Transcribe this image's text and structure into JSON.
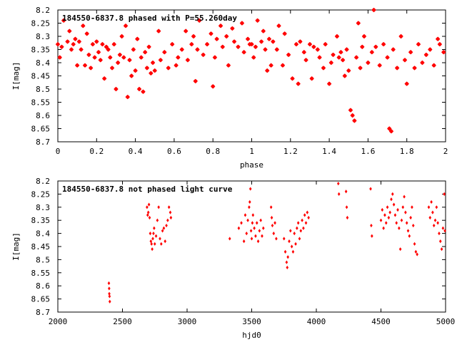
{
  "chart_data": [
    {
      "type": "scatter",
      "title": "184550-6837.8 phased with P=55.260day",
      "xlabel": "phase",
      "ylabel": "I[mag]",
      "xlim": [
        0,
        2
      ],
      "ylim": [
        8.7,
        8.2
      ],
      "y_inverted": true,
      "grid": false,
      "marker": "filled-star",
      "color": "#ff0000",
      "x_ticks": [
        "0",
        "0.2",
        "0.4",
        "0.6",
        "0.8",
        "1",
        "1.2",
        "1.4",
        "1.6",
        "1.8",
        "2"
      ],
      "y_ticks": [
        "8.2",
        "8.25",
        "8.3",
        "8.35",
        "8.4",
        "8.45",
        "8.5",
        "8.55",
        "8.6",
        "8.65",
        "8.7"
      ],
      "points": [
        [
          0.0,
          8.33
        ],
        [
          0.01,
          8.38
        ],
        [
          0.02,
          8.34
        ],
        [
          0.03,
          8.24
        ],
        [
          0.05,
          8.32
        ],
        [
          0.06,
          8.28
        ],
        [
          0.07,
          8.35
        ],
        [
          0.08,
          8.33
        ],
        [
          0.09,
          8.31
        ],
        [
          0.1,
          8.41
        ],
        [
          0.11,
          8.32
        ],
        [
          0.12,
          8.35
        ],
        [
          0.13,
          8.26
        ],
        [
          0.14,
          8.41
        ],
        [
          0.15,
          8.29
        ],
        [
          0.16,
          8.37
        ],
        [
          0.17,
          8.42
        ],
        [
          0.18,
          8.33
        ],
        [
          0.19,
          8.38
        ],
        [
          0.2,
          8.32
        ],
        [
          0.21,
          8.36
        ],
        [
          0.22,
          8.39
        ],
        [
          0.23,
          8.33
        ],
        [
          0.24,
          8.46
        ],
        [
          0.25,
          8.34
        ],
        [
          0.26,
          8.35
        ],
        [
          0.27,
          8.38
        ],
        [
          0.28,
          8.42
        ],
        [
          0.29,
          8.33
        ],
        [
          0.3,
          8.5
        ],
        [
          0.31,
          8.4
        ],
        [
          0.32,
          8.37
        ],
        [
          0.33,
          8.3
        ],
        [
          0.34,
          8.38
        ],
        [
          0.35,
          8.26
        ],
        [
          0.36,
          8.53
        ],
        [
          0.37,
          8.39
        ],
        [
          0.38,
          8.45
        ],
        [
          0.39,
          8.35
        ],
        [
          0.4,
          8.43
        ],
        [
          0.41,
          8.31
        ],
        [
          0.42,
          8.5
        ],
        [
          0.43,
          8.38
        ],
        [
          0.44,
          8.51
        ],
        [
          0.45,
          8.36
        ],
        [
          0.46,
          8.42
        ],
        [
          0.47,
          8.34
        ],
        [
          0.48,
          8.44
        ],
        [
          0.49,
          8.4
        ],
        [
          0.5,
          8.43
        ],
        [
          0.52,
          8.28
        ],
        [
          0.53,
          8.39
        ],
        [
          0.55,
          8.36
        ],
        [
          0.57,
          8.42
        ],
        [
          0.59,
          8.33
        ],
        [
          0.61,
          8.41
        ],
        [
          0.62,
          8.38
        ],
        [
          0.64,
          8.35
        ],
        [
          0.66,
          8.28
        ],
        [
          0.67,
          8.39
        ],
        [
          0.69,
          8.33
        ],
        [
          0.7,
          8.3
        ],
        [
          0.71,
          8.47
        ],
        [
          0.72,
          8.35
        ],
        [
          0.73,
          8.24
        ],
        [
          0.75,
          8.37
        ],
        [
          0.77,
          8.33
        ],
        [
          0.79,
          8.29
        ],
        [
          0.8,
          8.49
        ],
        [
          0.81,
          8.38
        ],
        [
          0.82,
          8.31
        ],
        [
          0.84,
          8.26
        ],
        [
          0.85,
          8.34
        ],
        [
          0.87,
          8.3
        ],
        [
          0.88,
          8.41
        ],
        [
          0.9,
          8.27
        ],
        [
          0.91,
          8.32
        ],
        [
          0.93,
          8.34
        ],
        [
          0.95,
          8.25
        ],
        [
          0.96,
          8.36
        ],
        [
          0.98,
          8.31
        ],
        [
          0.99,
          8.33
        ],
        [
          1.0,
          8.33
        ],
        [
          1.01,
          8.38
        ],
        [
          1.02,
          8.34
        ],
        [
          1.03,
          8.24
        ],
        [
          1.05,
          8.32
        ],
        [
          1.06,
          8.28
        ],
        [
          1.07,
          8.35
        ],
        [
          1.08,
          8.43
        ],
        [
          1.09,
          8.31
        ],
        [
          1.1,
          8.41
        ],
        [
          1.11,
          8.32
        ],
        [
          1.13,
          8.35
        ],
        [
          1.14,
          8.26
        ],
        [
          1.16,
          8.41
        ],
        [
          1.17,
          8.29
        ],
        [
          1.19,
          8.37
        ],
        [
          1.21,
          8.46
        ],
        [
          1.23,
          8.33
        ],
        [
          1.24,
          8.48
        ],
        [
          1.25,
          8.32
        ],
        [
          1.27,
          8.36
        ],
        [
          1.28,
          8.39
        ],
        [
          1.3,
          8.33
        ],
        [
          1.31,
          8.46
        ],
        [
          1.32,
          8.34
        ],
        [
          1.34,
          8.35
        ],
        [
          1.35,
          8.38
        ],
        [
          1.37,
          8.42
        ],
        [
          1.38,
          8.33
        ],
        [
          1.4,
          8.48
        ],
        [
          1.41,
          8.4
        ],
        [
          1.42,
          8.37
        ],
        [
          1.44,
          8.3
        ],
        [
          1.45,
          8.38
        ],
        [
          1.46,
          8.36
        ],
        [
          1.47,
          8.39
        ],
        [
          1.48,
          8.45
        ],
        [
          1.49,
          8.35
        ],
        [
          1.5,
          8.43
        ],
        [
          1.51,
          8.58
        ],
        [
          1.52,
          8.6
        ],
        [
          1.53,
          8.62
        ],
        [
          1.54,
          8.38
        ],
        [
          1.55,
          8.25
        ],
        [
          1.56,
          8.42
        ],
        [
          1.57,
          8.34
        ],
        [
          1.58,
          8.3
        ],
        [
          1.6,
          8.4
        ],
        [
          1.62,
          8.36
        ],
        [
          1.63,
          8.2
        ],
        [
          1.64,
          8.34
        ],
        [
          1.66,
          8.41
        ],
        [
          1.68,
          8.33
        ],
        [
          1.7,
          8.38
        ],
        [
          1.71,
          8.65
        ],
        [
          1.72,
          8.66
        ],
        [
          1.73,
          8.35
        ],
        [
          1.75,
          8.42
        ],
        [
          1.77,
          8.3
        ],
        [
          1.79,
          8.39
        ],
        [
          1.8,
          8.48
        ],
        [
          1.82,
          8.36
        ],
        [
          1.84,
          8.42
        ],
        [
          1.86,
          8.33
        ],
        [
          1.88,
          8.4
        ],
        [
          1.9,
          8.37
        ],
        [
          1.92,
          8.35
        ],
        [
          1.94,
          8.41
        ],
        [
          1.96,
          8.31
        ],
        [
          1.97,
          8.33
        ],
        [
          1.99,
          8.36
        ]
      ]
    },
    {
      "type": "scatter",
      "title": "184550-6837.8 not phased light curve",
      "xlabel": "hjd0",
      "ylabel": "I[mag]",
      "xlim": [
        2000,
        5000
      ],
      "ylim": [
        8.7,
        8.2
      ],
      "y_inverted": true,
      "grid": false,
      "marker": "small-diamond",
      "color": "#ff0000",
      "x_ticks": [
        "2000",
        "2500",
        "3000",
        "3500",
        "4000",
        "4500",
        "5000"
      ],
      "y_ticks": [
        "8.2",
        "8.25",
        "8.3",
        "8.35",
        "8.4",
        "8.45",
        "8.5",
        "8.55",
        "8.6",
        "8.65",
        "8.7"
      ],
      "points": [
        [
          2395,
          8.59
        ],
        [
          2397,
          8.61
        ],
        [
          2398,
          8.63
        ],
        [
          2400,
          8.64
        ],
        [
          2402,
          8.66
        ],
        [
          2690,
          8.3
        ],
        [
          2695,
          8.33
        ],
        [
          2700,
          8.32
        ],
        [
          2705,
          8.29
        ],
        [
          2710,
          8.34
        ],
        [
          2715,
          8.4
        ],
        [
          2720,
          8.43
        ],
        [
          2725,
          8.44
        ],
        [
          2730,
          8.46
        ],
        [
          2735,
          8.42
        ],
        [
          2740,
          8.4
        ],
        [
          2745,
          8.38
        ],
        [
          2750,
          8.44
        ],
        [
          2760,
          8.41
        ],
        [
          2770,
          8.35
        ],
        [
          2780,
          8.3
        ],
        [
          2790,
          8.42
        ],
        [
          2800,
          8.44
        ],
        [
          2810,
          8.39
        ],
        [
          2820,
          8.38
        ],
        [
          2830,
          8.43
        ],
        [
          2840,
          8.37
        ],
        [
          2850,
          8.35
        ],
        [
          2860,
          8.3
        ],
        [
          2870,
          8.32
        ],
        [
          2875,
          8.34
        ],
        [
          3330,
          8.42
        ],
        [
          3400,
          8.38
        ],
        [
          3420,
          8.36
        ],
        [
          3440,
          8.43
        ],
        [
          3450,
          8.33
        ],
        [
          3460,
          8.4
        ],
        [
          3470,
          8.35
        ],
        [
          3480,
          8.3
        ],
        [
          3485,
          8.28
        ],
        [
          3490,
          8.23
        ],
        [
          3495,
          8.39
        ],
        [
          3500,
          8.42
        ],
        [
          3505,
          8.36
        ],
        [
          3510,
          8.33
        ],
        [
          3520,
          8.38
        ],
        [
          3530,
          8.41
        ],
        [
          3540,
          8.36
        ],
        [
          3550,
          8.43
        ],
        [
          3560,
          8.39
        ],
        [
          3570,
          8.35
        ],
        [
          3580,
          8.41
        ],
        [
          3590,
          8.38
        ],
        [
          3650,
          8.3
        ],
        [
          3655,
          8.34
        ],
        [
          3660,
          8.37
        ],
        [
          3670,
          8.4
        ],
        [
          3680,
          8.36
        ],
        [
          3690,
          8.42
        ],
        [
          3750,
          8.42
        ],
        [
          3760,
          8.47
        ],
        [
          3770,
          8.51
        ],
        [
          3775,
          8.53
        ],
        [
          3780,
          8.49
        ],
        [
          3790,
          8.43
        ],
        [
          3800,
          8.39
        ],
        [
          3810,
          8.45
        ],
        [
          3820,
          8.47
        ],
        [
          3830,
          8.4
        ],
        [
          3840,
          8.44
        ],
        [
          3850,
          8.38
        ],
        [
          3860,
          8.36
        ],
        [
          3870,
          8.42
        ],
        [
          3880,
          8.39
        ],
        [
          3890,
          8.35
        ],
        [
          3900,
          8.38
        ],
        [
          3910,
          8.33
        ],
        [
          3920,
          8.36
        ],
        [
          3930,
          8.32
        ],
        [
          3940,
          8.34
        ],
        [
          4170,
          8.21
        ],
        [
          4175,
          8.25
        ],
        [
          4230,
          8.24
        ],
        [
          4235,
          8.3
        ],
        [
          4240,
          8.34
        ],
        [
          4420,
          8.23
        ],
        [
          4425,
          8.37
        ],
        [
          4430,
          8.41
        ],
        [
          4500,
          8.35
        ],
        [
          4510,
          8.31
        ],
        [
          4520,
          8.38
        ],
        [
          4530,
          8.33
        ],
        [
          4540,
          8.36
        ],
        [
          4550,
          8.3
        ],
        [
          4560,
          8.34
        ],
        [
          4570,
          8.32
        ],
        [
          4580,
          8.27
        ],
        [
          4590,
          8.25
        ],
        [
          4600,
          8.29
        ],
        [
          4610,
          8.33
        ],
        [
          4620,
          8.36
        ],
        [
          4630,
          8.31
        ],
        [
          4640,
          8.38
        ],
        [
          4650,
          8.46
        ],
        [
          4660,
          8.35
        ],
        [
          4670,
          8.3
        ],
        [
          4680,
          8.26
        ],
        [
          4690,
          8.32
        ],
        [
          4700,
          8.36
        ],
        [
          4710,
          8.39
        ],
        [
          4720,
          8.41
        ],
        [
          4730,
          8.34
        ],
        [
          4740,
          8.3
        ],
        [
          4750,
          8.37
        ],
        [
          4760,
          8.44
        ],
        [
          4770,
          8.47
        ],
        [
          4780,
          8.48
        ],
        [
          4870,
          8.3
        ],
        [
          4880,
          8.34
        ],
        [
          4890,
          8.28
        ],
        [
          4900,
          8.32
        ],
        [
          4910,
          8.37
        ],
        [
          4920,
          8.35
        ],
        [
          4930,
          8.3
        ],
        [
          4940,
          8.36
        ],
        [
          4950,
          8.4
        ],
        [
          4960,
          8.43
        ],
        [
          4970,
          8.46
        ],
        [
          4980,
          8.38
        ],
        [
          4990,
          8.25
        ],
        [
          4995,
          8.39
        ]
      ]
    }
  ]
}
